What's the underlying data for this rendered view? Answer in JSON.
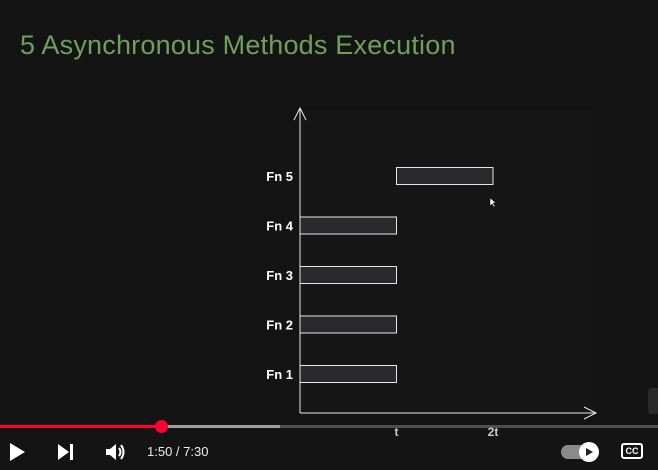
{
  "slide": {
    "title": "5 Asynchronous Methods Execution"
  },
  "chart_data": {
    "type": "bar",
    "orientation": "horizontal",
    "categories": [
      "Fn 1",
      "Fn 2",
      "Fn 3",
      "Fn 4",
      "Fn 5"
    ],
    "start": [
      0,
      0,
      0,
      0,
      1
    ],
    "end": [
      1,
      1,
      1,
      1,
      2
    ],
    "x_ticks": [
      {
        "value": 1,
        "label": "t"
      },
      {
        "value": 2,
        "label": "2t"
      }
    ],
    "xlim": [
      0,
      3
    ],
    "title": "",
    "xlabel": "",
    "ylabel": "",
    "grid": false,
    "colors": {
      "bar_fill": "#2a2a2c",
      "bar_stroke": "#e6e6e6",
      "axis": "#e6e6e6",
      "label": "#ffffff",
      "tick_label": "#cccccc"
    }
  },
  "player": {
    "time_display": "1:50 / 7:30",
    "progress_fraction": 0.2444,
    "buffered_fraction": 0.426,
    "cc_label": "CC",
    "colors": {
      "played": "#ff0033"
    },
    "icons": {
      "play": "play-icon",
      "next": "skip-next-icon",
      "volume": "volume-icon",
      "autoplay": "autoplay-toggle-icon",
      "cc": "closed-captions-icon"
    }
  }
}
